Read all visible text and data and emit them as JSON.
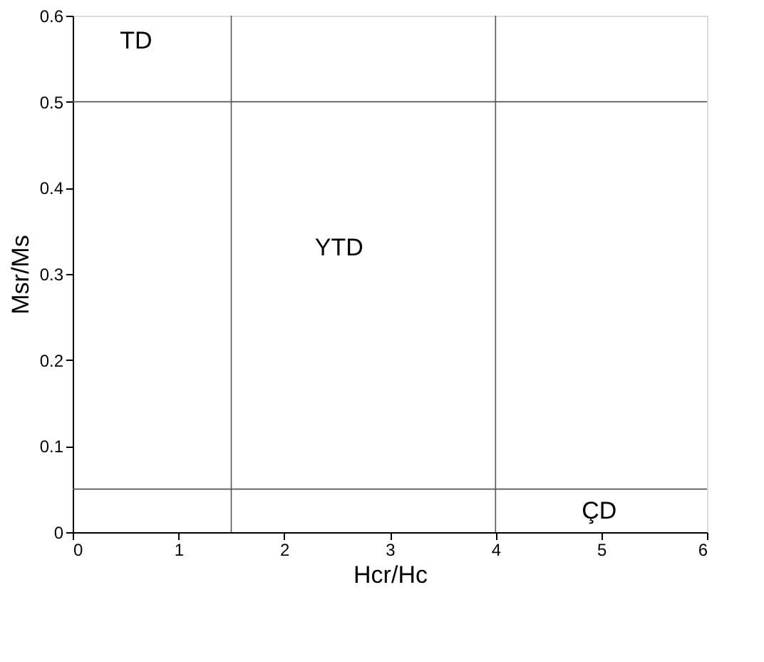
{
  "chart_data": {
    "type": "scatter",
    "xlabel": "Hcr/Hc",
    "ylabel": "Msr/Ms",
    "xlim": [
      0,
      6
    ],
    "ylim": [
      0,
      0.6
    ],
    "xticks": [
      0,
      1,
      2,
      3,
      4,
      5,
      6
    ],
    "yticks": [
      0,
      0.1,
      0.2,
      0.3,
      0.4,
      0.5,
      0.6
    ],
    "grid": false,
    "ref_lines": [
      {
        "axis": "x",
        "value": 1.5,
        "label": null,
        "color": "#555555"
      },
      {
        "axis": "x",
        "value": 4,
        "label": null,
        "color": "#555555"
      },
      {
        "axis": "y",
        "value": 0.5,
        "label": null,
        "color": "#555555"
      },
      {
        "axis": "y",
        "value": 0.05,
        "label": null,
        "color": "#555555"
      }
    ],
    "annotations": [
      "TD",
      "YTD",
      "ÇD"
    ]
  }
}
